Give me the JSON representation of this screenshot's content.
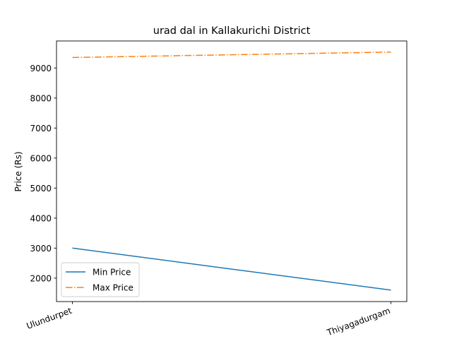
{
  "chart_data": {
    "type": "line",
    "title": "urad dal in Kallakurichi District",
    "xlabel": "",
    "ylabel": "Price (Rs)",
    "categories": [
      "Ulundurpet",
      "Thiyagadurgam"
    ],
    "y_ticks": [
      2000,
      3000,
      4000,
      5000,
      6000,
      7000,
      8000,
      9000
    ],
    "ylim": [
      1220,
      9900
    ],
    "grid": false,
    "legend_position": "lower-left",
    "series": [
      {
        "name": "Min Price",
        "values": [
          3000,
          1600
        ],
        "color": "#1f77b4",
        "linestyle": "solid"
      },
      {
        "name": "Max Price",
        "values": [
          9350,
          9530
        ],
        "color": "#ff7f0e",
        "linestyle": "dashdot"
      }
    ]
  }
}
